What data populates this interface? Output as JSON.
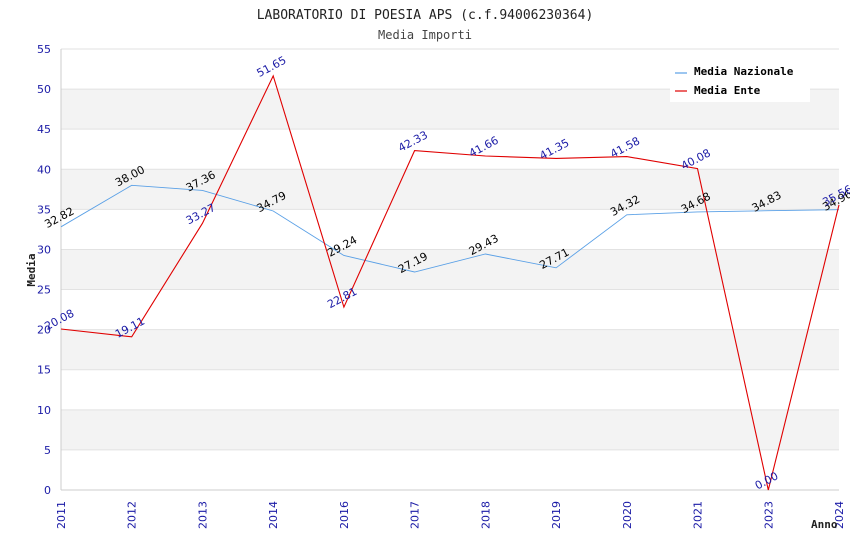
{
  "chart_data": {
    "type": "line",
    "title": "LABORATORIO DI POESIA APS (c.f.94006230364)",
    "subtitle": "Media Importi",
    "xlabel": "Anno",
    "ylabel": "Media",
    "ylim": [
      0,
      55
    ],
    "yticks": [
      0,
      5,
      10,
      15,
      20,
      25,
      30,
      35,
      40,
      45,
      50,
      55
    ],
    "categories": [
      "2011",
      "2012",
      "2013",
      "2014",
      "2016",
      "2017",
      "2018",
      "2019",
      "2020",
      "2021",
      "2023",
      "2024"
    ],
    "grid": "horizontal-bands",
    "legend_position": "top-right",
    "series": [
      {
        "name": "Media Nazionale",
        "color": "#5aa0e6",
        "values": [
          32.82,
          38.0,
          37.36,
          34.79,
          29.24,
          27.19,
          29.43,
          27.71,
          34.32,
          34.68,
          34.83,
          34.96
        ],
        "labels": [
          "32.82",
          "38.00",
          "37.36",
          "34.79",
          "29.24",
          "27.19",
          "29.43",
          "27.71",
          "34.32",
          "34.68",
          "34.83",
          "34.96"
        ]
      },
      {
        "name": "Media Ente",
        "color": "#e00000",
        "values": [
          20.08,
          19.11,
          33.27,
          51.65,
          22.81,
          42.33,
          41.66,
          41.35,
          41.58,
          40.08,
          0.0,
          35.56
        ],
        "labels": [
          "20.08",
          "19.11",
          "33.27",
          "51.65",
          "22.81",
          "42.33",
          "41.66",
          "41.35",
          "41.58",
          "40.08",
          "0.00",
          "35.56"
        ]
      }
    ]
  }
}
